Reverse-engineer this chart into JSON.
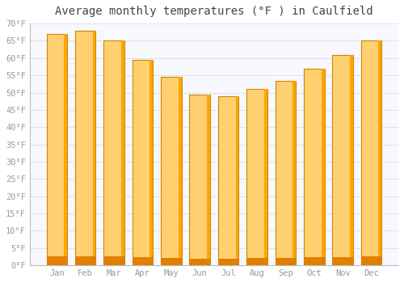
{
  "title": "Average monthly temperatures (°F ) in Caulfield",
  "months": [
    "Jan",
    "Feb",
    "Mar",
    "Apr",
    "May",
    "Jun",
    "Jul",
    "Aug",
    "Sep",
    "Oct",
    "Nov",
    "Dec"
  ],
  "values": [
    67.0,
    68.0,
    65.0,
    59.5,
    54.5,
    49.5,
    49.0,
    51.0,
    53.5,
    57.0,
    61.0,
    65.0
  ],
  "bar_color_main": "#FFA500",
  "bar_color_light": "#FFD070",
  "bar_color_dark": "#E08000",
  "bar_edge_color": "#CC8800",
  "background_color": "#FFFFFF",
  "plot_bg_color": "#F8F8FF",
  "grid_color": "#DDDDDD",
  "text_color": "#999999",
  "ylim": [
    0,
    70
  ],
  "yticks": [
    0,
    5,
    10,
    15,
    20,
    25,
    30,
    35,
    40,
    45,
    50,
    55,
    60,
    65,
    70
  ],
  "ylabel_suffix": "°F",
  "title_fontsize": 10,
  "tick_fontsize": 7.5,
  "font_family": "monospace"
}
